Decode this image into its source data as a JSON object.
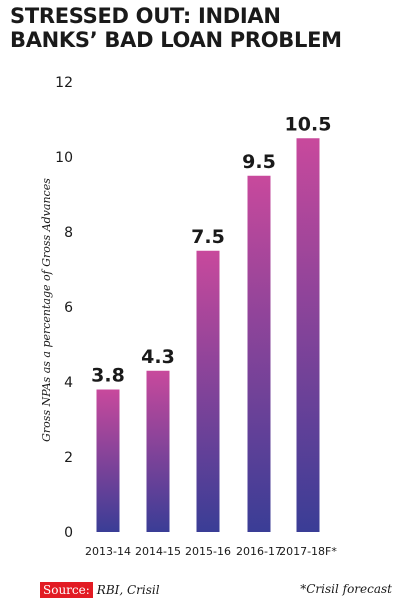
{
  "chart_data": {
    "type": "bar",
    "title_lines": [
      "STRESSED OUT: INDIAN",
      "BANKS’ BAD LOAN PROBLEM"
    ],
    "ylabel": "Gross NPAs as a percentage of Gross Advances",
    "xlabel": "",
    "categories": [
      "2013-14",
      "2014-15",
      "2015-16",
      "2016-17",
      "2017-18F*"
    ],
    "values": [
      3.8,
      4.3,
      7.5,
      9.5,
      10.5
    ],
    "data_labels": [
      "3.8",
      "4.3",
      "7.5",
      "9.5",
      "10.5"
    ],
    "ylim": [
      0,
      12
    ],
    "yticks": [
      0,
      2,
      4,
      6,
      8,
      10,
      12
    ],
    "grid": false,
    "legend": "none",
    "colors": {
      "bar_top": "#c8499c",
      "bar_bottom": "#3a3d96"
    }
  },
  "footer": {
    "source_label": "Source:",
    "source_text": "RBI, Crisil",
    "footnote": "*Crisil forecast"
  }
}
